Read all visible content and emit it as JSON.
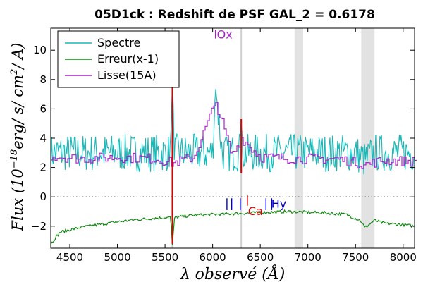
{
  "chart_data": {
    "type": "line",
    "title": "05D1ck : Redshift de PSF GAL_2 = 0.6178",
    "xlabel": "λ observé (Å)",
    "ylabel": "Flux (10⁻¹⁸ erg/ s/ cm²/ A)",
    "ylabel_parts": {
      "pre": "Flux (10",
      "sup": "−18",
      "mid1": "erg/ s/ cm",
      "sup2": "2",
      "post": "/ A)"
    },
    "xlim": [
      4300,
      8120
    ],
    "ylim": [
      -3.5,
      11.5
    ],
    "x_ticks": [
      4500,
      5000,
      5500,
      6000,
      6500,
      7000,
      7500,
      8000
    ],
    "y_ticks": [
      -2,
      0,
      2,
      4,
      6,
      8,
      10
    ],
    "legend": {
      "placement": "top-left"
    },
    "zero_line": {
      "y": 0,
      "style": "dotted"
    },
    "shaded_bands": [
      {
        "x": [
          6860,
          6950
        ]
      },
      {
        "x": [
          7560,
          7700
        ]
      }
    ],
    "vertical_lines": [
      {
        "x": 5577
      },
      {
        "x": 6300
      }
    ],
    "series": [
      {
        "name": "Spectre",
        "color": "#17b8b8",
        "x": [
          4300,
          4500,
          4700,
          4900,
          5100,
          5300,
          5500,
          5560,
          5577,
          5600,
          5800,
          6000,
          6030,
          6100,
          6280,
          6300,
          6320,
          6500,
          6700,
          6900,
          7100,
          7300,
          7500,
          7600,
          7700,
          7900,
          8120
        ],
        "y": [
          3,
          3,
          3,
          3,
          3,
          3,
          3,
          3,
          8.5,
          3,
          3,
          3,
          7.5,
          3,
          3,
          5.3,
          3,
          3,
          3,
          3,
          3,
          3,
          3,
          2.5,
          3,
          3,
          3
        ],
        "noise": 1.3
      },
      {
        "name": "Erreur(x-1)",
        "color": "#118811",
        "x": [
          4300,
          4400,
          4600,
          4800,
          5000,
          5200,
          5400,
          5560,
          5577,
          5600,
          5800,
          6000,
          6200,
          6400,
          6600,
          6800,
          7000,
          7200,
          7400,
          7550,
          7600,
          7700,
          7800,
          8000,
          8120
        ],
        "y": [
          -3.2,
          -2.4,
          -2.1,
          -1.9,
          -1.7,
          -1.55,
          -1.45,
          -1.4,
          -3.3,
          -1.4,
          -1.25,
          -1.2,
          -1.15,
          -1.1,
          -1.05,
          -1.0,
          -1.05,
          -1.1,
          -1.2,
          -1.6,
          -2.1,
          -1.6,
          -1.8,
          -1.9,
          -2.0
        ],
        "noise": 0.1
      },
      {
        "name": "Lisse(15A)",
        "color": "#aa22cc",
        "x": [
          4300,
          4600,
          5000,
          5400,
          5577,
          5800,
          6030,
          6200,
          6300,
          6500,
          6900,
          7300,
          7600,
          7800,
          8120
        ],
        "y": [
          2.8,
          2.6,
          2.7,
          2.6,
          2.3,
          2.7,
          6.5,
          2.8,
          4.0,
          2.7,
          2.6,
          2.6,
          2.2,
          2.5,
          2.4
        ],
        "noise": 0.35
      }
    ],
    "line_markers": [
      {
        "label": "Ox",
        "x": 6030,
        "color": "#aa22cc"
      },
      {
        "label": "Ca",
        "x": 6365,
        "color": "#dd0000"
      },
      {
        "label": "Hy",
        "x": 6620,
        "color": "#0000cc"
      }
    ]
  }
}
